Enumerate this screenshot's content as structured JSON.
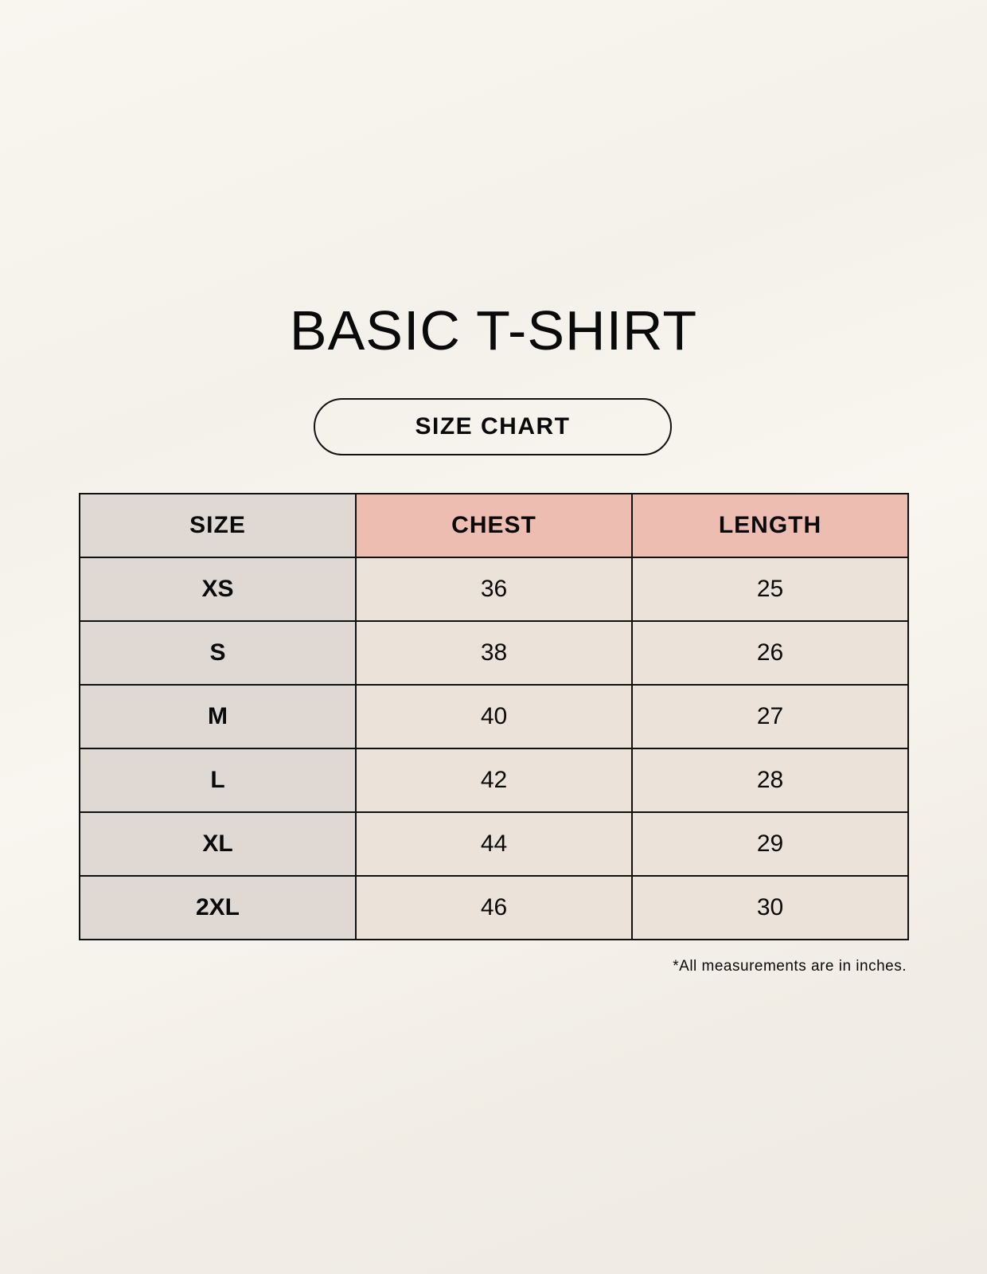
{
  "title": "BASIC T-SHIRT",
  "subtitle": "SIZE CHART",
  "table": {
    "headers": [
      "SIZE",
      "CHEST",
      "LENGTH"
    ],
    "rows": [
      [
        "XS",
        "36",
        "25"
      ],
      [
        "S",
        "38",
        "26"
      ],
      [
        "M",
        "40",
        "27"
      ],
      [
        "L",
        "42",
        "28"
      ],
      [
        "XL",
        "44",
        "29"
      ],
      [
        "2XL",
        "46",
        "30"
      ]
    ]
  },
  "note": "*All measurements are in inches.",
  "colors": {
    "size_column": "#e0d9d3",
    "header_accent": "#ecbdb0",
    "cell": "#ebe3d9"
  }
}
